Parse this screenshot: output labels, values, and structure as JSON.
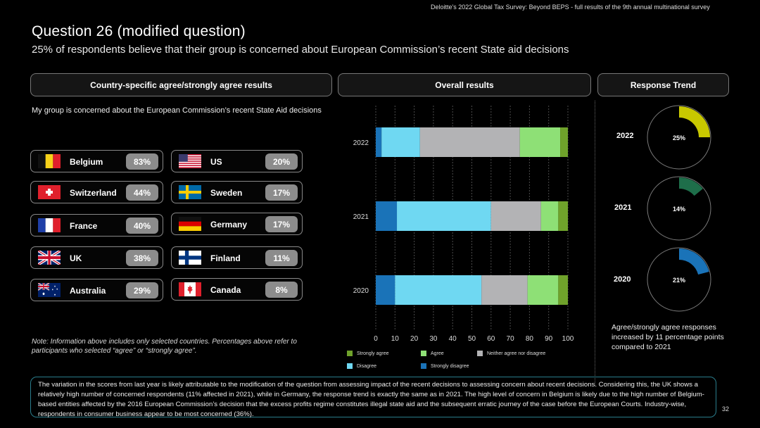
{
  "header": {
    "source": "Deloitte's 2022 Global Tax Survey: Beyond BEPS  - full results of the 9th annual multinational survey",
    "title": "Question 26 (modified question)",
    "subtitle": "25% of respondents believe that their group is concerned about European Commission’s recent State aid decisions"
  },
  "sections": {
    "country_title": "Country-specific agree/strongly agree results",
    "overall_title": "Overall results",
    "trend_title": "Response Trend"
  },
  "country_desc": "My group is concerned about the European Commission’s recent State Aid decisions",
  "countries": [
    {
      "name": "Belgium",
      "pct": "83%",
      "flag": "belgium-flag"
    },
    {
      "name": "US",
      "pct": "20%",
      "flag": "us-flag"
    },
    {
      "name": "Switzerland",
      "pct": "44%",
      "flag": "switzerland-flag"
    },
    {
      "name": "Sweden",
      "pct": "17%",
      "flag": "sweden-flag"
    },
    {
      "name": "France",
      "pct": "40%",
      "flag": "france-flag"
    },
    {
      "name": "Germany",
      "pct": "17%",
      "flag": "germany-flag"
    },
    {
      "name": "UK",
      "pct": "38%",
      "flag": "uk-flag"
    },
    {
      "name": "Finland",
      "pct": "11%",
      "flag": "finland-flag"
    },
    {
      "name": "Australia",
      "pct": "29%",
      "flag": "australia-flag"
    },
    {
      "name": "Canada",
      "pct": "8%",
      "flag": "canada-flag"
    }
  ],
  "note": "Note: Information above includes only selected countries. Percentages above refer to participants who selected “agree” or “strongly agree”.",
  "chart_data": [
    {
      "type": "bar",
      "orientation": "horizontal-stacked",
      "categories": [
        "2022",
        "2021",
        "2020"
      ],
      "series": [
        {
          "name": "Strongly disagree",
          "color": "#1a73b8",
          "values": [
            3,
            11,
            10
          ]
        },
        {
          "name": "Disagree",
          "color": "#6fd8f2",
          "values": [
            20,
            49,
            45
          ]
        },
        {
          "name": "Neither agree nor disagree",
          "color": "#b3b3b5",
          "values": [
            52,
            26,
            24
          ]
        },
        {
          "name": "Agree",
          "color": "#8ee076",
          "values": [
            21,
            9,
            16
          ]
        },
        {
          "name": "Strongly agree",
          "color": "#6fa22b",
          "values": [
            4,
            5,
            5
          ]
        }
      ],
      "legend_order": [
        "Strongly agree",
        "Agree",
        "Neither agree nor disagree",
        "Disagree",
        "Strongly disagree"
      ],
      "xlim": [
        0,
        100
      ],
      "xticks": [
        "0",
        "10",
        "20",
        "30",
        "40",
        "50",
        "60",
        "70",
        "80",
        "90",
        "100"
      ],
      "grid": true,
      "legend_position": "bottom"
    },
    {
      "type": "pie",
      "items": [
        {
          "year": "2022",
          "label": "25%",
          "value": 25,
          "color": "#c8c800"
        },
        {
          "year": "2021",
          "label": "14%",
          "value": 14,
          "color": "#1e6e4a"
        },
        {
          "year": "2020",
          "label": "21%",
          "value": 21,
          "color": "#1a73b8"
        }
      ]
    }
  ],
  "trend_note": "Agree/strongly agree responses increased by 11 percentage points compared to 2021",
  "footer": "The variation in the scores from last year is likely attributable to the modification of the question from assessing impact of the recent decisions to assessing concern about recent decisions. Considering this, the UK shows a relatively high number of concerned respondents (11% affected in 2021), while in Germany, the response trend is exactly the same as in 2021. The high level of concern in Belgium is likely due to the high number of Belgium-based entities affected by the 2016 European Commission’s decision that the excess profits regime constitutes illegal state aid and the subsequent erratic journey of the case before the European Courts. Industry-wise, respondents in consumer business appear to be most concerned (36%).",
  "page_number": "32"
}
